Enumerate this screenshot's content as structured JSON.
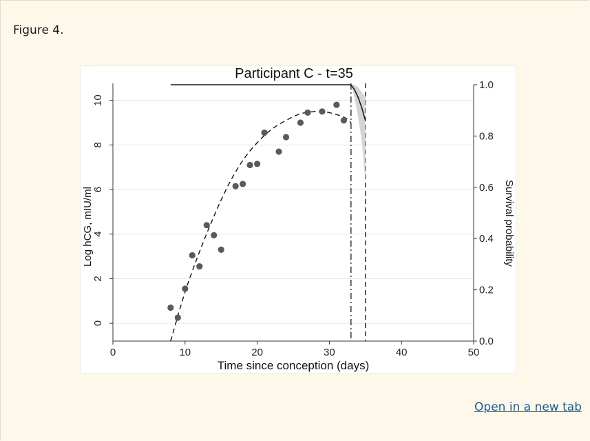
{
  "figure_label": "Figure 4.",
  "open_link": "Open in a new tab",
  "chart_data": {
    "type": "scatter",
    "title": "Participant C - t=35",
    "xlabel": "Time since conception (days)",
    "ylabel": "Log hCG, mIU/ml",
    "y2label": "Survival probability",
    "xlim": [
      0,
      50
    ],
    "ylim": [
      -0.8,
      10.7
    ],
    "y2lim": [
      0,
      1
    ],
    "x_ticks": [
      0,
      10,
      20,
      30,
      40,
      50
    ],
    "y_ticks": [
      0,
      2,
      4,
      6,
      8,
      10
    ],
    "y2_ticks": [
      "0.0",
      "0.2",
      "0.4",
      "0.6",
      "0.8",
      "1.0"
    ],
    "grid": true,
    "colors": {
      "points": "#5a5a5a",
      "line": "#1a1a1a",
      "band": "#cfcfcf",
      "grid": "#e6e6e6"
    },
    "series": [
      {
        "kind": "points",
        "x": [
          8,
          9,
          10,
          11,
          12,
          13,
          14,
          15,
          17,
          18,
          19,
          20,
          21,
          23,
          24,
          26,
          27,
          29,
          31,
          32
        ],
        "y": [
          0.7,
          0.25,
          1.55,
          3.05,
          2.55,
          4.4,
          3.95,
          3.3,
          6.15,
          6.25,
          7.1,
          7.15,
          8.55,
          7.7,
          8.35,
          9.0,
          9.45,
          9.5,
          9.8,
          9.1
        ]
      },
      {
        "kind": "fitted-curve",
        "style": "dashed",
        "x": [
          8,
          10,
          12,
          14,
          16,
          18,
          20,
          22,
          24,
          26,
          28,
          29,
          30,
          32,
          33
        ],
        "y": [
          -0.8,
          1.4,
          3.2,
          4.8,
          6.2,
          7.3,
          8.1,
          8.7,
          9.1,
          9.4,
          9.5,
          9.5,
          9.45,
          9.25,
          9.0
        ]
      },
      {
        "kind": "survival-curve",
        "axis": "y2",
        "x": [
          8,
          33,
          33.5,
          34,
          34.5,
          35
        ],
        "y": [
          1.0,
          1.0,
          0.98,
          0.95,
          0.91,
          0.86
        ]
      },
      {
        "kind": "survival-band",
        "axis": "y2",
        "x": [
          33,
          33.5,
          34,
          34.5,
          35
        ],
        "lower": [
          1.0,
          0.95,
          0.87,
          0.78,
          0.62
        ],
        "upper": [
          1.0,
          1.0,
          0.99,
          0.97,
          0.95
        ]
      }
    ],
    "vlines": [
      {
        "x": 33,
        "style": "dashdot"
      },
      {
        "x": 35,
        "style": "dashed"
      }
    ]
  }
}
